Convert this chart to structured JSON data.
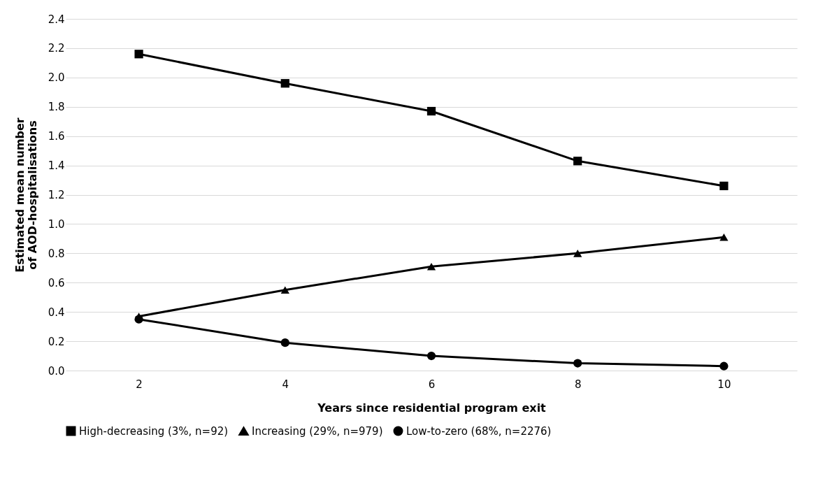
{
  "chart_data": {
    "type": "line",
    "xlabel": "Years since residential program exit",
    "ylabel": "Estimated mean number of AOD-hospitalisations",
    "categories": [
      "2",
      "4",
      "6",
      "8",
      "10"
    ],
    "series": [
      {
        "name": "High-decreasing (3%, n=92)",
        "color": "#000000",
        "marker": "square",
        "values": [
          2.16,
          1.96,
          1.77,
          1.43,
          1.26
        ]
      },
      {
        "name": "Increasing (29%, n=979)",
        "color": "#000000",
        "marker": "triangle",
        "values": [
          0.37,
          0.55,
          0.71,
          0.8,
          0.91
        ]
      },
      {
        "name": "Low-to-zero (68%, n=2276)",
        "color": "#000000",
        "marker": "circle",
        "values": [
          0.35,
          0.19,
          0.1,
          0.05,
          0.03
        ]
      }
    ],
    "ylim": [
      0,
      2.4
    ],
    "yticks": [
      {
        "value": 0,
        "label": "0.0"
      },
      0.2,
      0.4,
      0.6,
      0.8,
      {
        "value": 1,
        "label": "1.0"
      },
      1.2,
      1.4,
      1.6,
      1.8,
      {
        "value": 2,
        "label": "2.0"
      },
      2.2,
      2.4
    ],
    "grid": "y",
    "legend": "bottom",
    "line_style": "solid"
  }
}
